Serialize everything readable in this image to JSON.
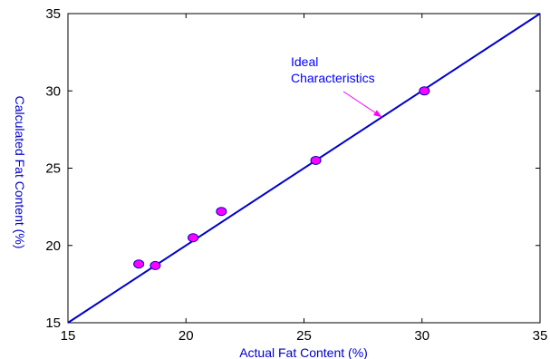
{
  "chart_data": {
    "type": "scatter",
    "xlabel": "Actual Fat Content (%)",
    "ylabel": "Calculated Fat Content (%)",
    "xlim": [
      15,
      35
    ],
    "ylim": [
      15,
      35
    ],
    "x_ticks": [
      "15",
      "20",
      "25",
      "30",
      "35"
    ],
    "y_ticks": [
      "15",
      "20",
      "25",
      "30",
      "35"
    ],
    "grid": false,
    "series": [
      {
        "type": "scatter",
        "points": [
          {
            "x": 18.0,
            "y": 18.8
          },
          {
            "x": 18.7,
            "y": 18.7
          },
          {
            "x": 20.3,
            "y": 20.5
          },
          {
            "x": 21.5,
            "y": 22.2
          },
          {
            "x": 25.5,
            "y": 25.5
          },
          {
            "x": 30.1,
            "y": 30.0
          }
        ]
      },
      {
        "type": "line",
        "points": [
          {
            "x": 15,
            "y": 15
          },
          {
            "x": 35,
            "y": 35
          }
        ]
      }
    ],
    "annotations": [
      {
        "text": [
          "Ideal",
          "Characteristics"
        ],
        "arrow_to": {
          "x": 28.3,
          "y": 28.3
        }
      }
    ],
    "colors": {
      "line": "#0000cc",
      "marker_fill": "#ff00ff",
      "marker_stroke": "#0000cc",
      "annotation": "#0000ff",
      "arrow": "#ff00ff",
      "axis_title": "#0000cc",
      "axes": "#000000"
    }
  }
}
